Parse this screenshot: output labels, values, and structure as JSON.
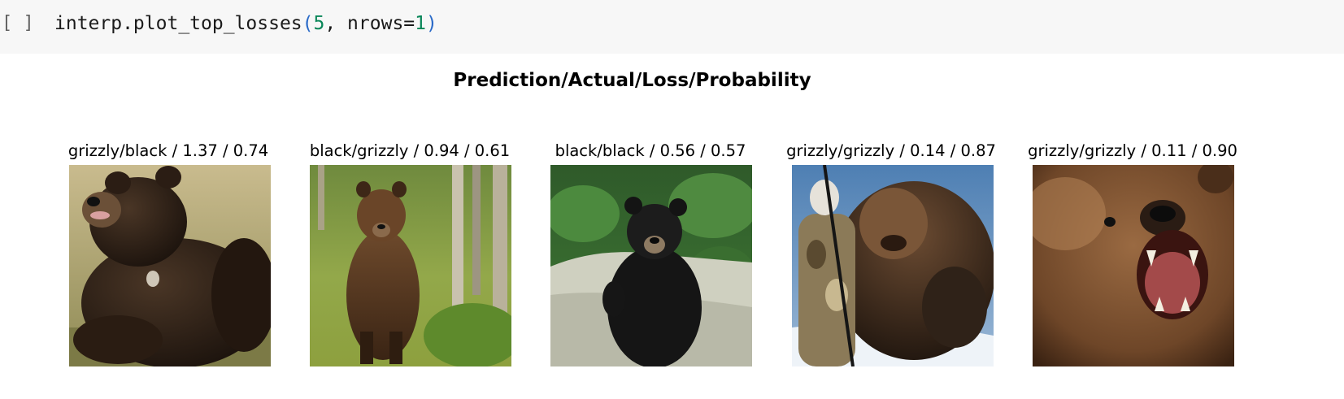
{
  "code_cell": {
    "prompt": "[ ]",
    "code": {
      "object": "interp.plot_top_losses",
      "open_paren": "(",
      "arg1": "5",
      "sep": ", nrows=",
      "arg2": "1",
      "close_paren": ")"
    }
  },
  "output": {
    "title": "Prediction/Actual/Loss/Probability",
    "panels": [
      {
        "caption": "grizzly/black / 1.37 / 0.74"
      },
      {
        "caption": "black/grizzly / 0.94 / 0.61"
      },
      {
        "caption": "black/black / 0.56 / 0.57"
      },
      {
        "caption": "grizzly/grizzly / 0.14 / 0.87"
      },
      {
        "caption": "grizzly/grizzly / 0.11 / 0.90"
      }
    ]
  }
}
